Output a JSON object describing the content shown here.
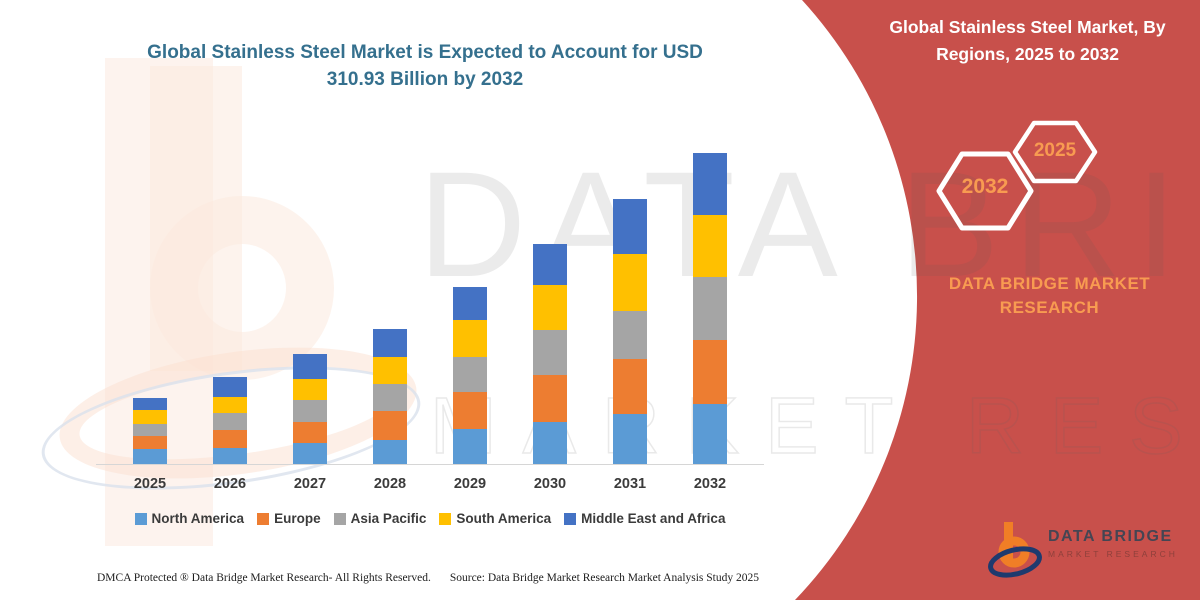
{
  "right_panel": {
    "heading": "Global Stainless Steel Market, By Regions, 2025 to 2032",
    "hexagon_back": "2032",
    "hexagon_front": "2025",
    "brand": "DATA BRIDGE MARKET RESEARCH",
    "panel_color": "#c8504b",
    "accent_text_color": "#f89b51"
  },
  "watermark": {
    "line1": "DATA BRIDGE",
    "line2": "MARKET RESEARCH"
  },
  "logo": {
    "monogram": "b",
    "name": "DATA BRIDGE",
    "tagline": "MARKET RESEARCH"
  },
  "footer": {
    "left": "DMCA Protected ® Data Bridge Market Research-  All Rights Reserved.",
    "right": "Source: Data Bridge Market Research  Market Analysis Study 2025"
  },
  "chart_data": {
    "type": "bar",
    "stacked": true,
    "title": "Global Stainless Steel Market is Expected to Account for USD 310.93 Billion by 2032",
    "unit": "USD Billion",
    "categories": [
      "2025",
      "2026",
      "2027",
      "2028",
      "2029",
      "2030",
      "2031",
      "2032"
    ],
    "series": [
      {
        "name": "North America",
        "color": "#5b9bd5",
        "values": [
          15,
          16,
          21,
          24,
          35,
          42,
          50,
          60
        ]
      },
      {
        "name": "Europe",
        "color": "#ed7d31",
        "values": [
          13,
          18,
          21,
          29,
          37,
          47,
          55,
          64
        ]
      },
      {
        "name": "Asia Pacific",
        "color": "#a5a5a5",
        "values": [
          12,
          17,
          22,
          27,
          35,
          45,
          48,
          63
        ]
      },
      {
        "name": "South America",
        "color": "#ffc000",
        "values": [
          14,
          16,
          21,
          27,
          37,
          45,
          57,
          62
        ]
      },
      {
        "name": "Middle East and Africa",
        "color": "#4472c4",
        "values": [
          12,
          20,
          25,
          28,
          33,
          41,
          55,
          61.93
        ]
      }
    ],
    "totals": [
      66,
      87,
      110,
      135,
      177,
      220,
      265,
      310.93
    ],
    "ylim": [
      0,
      320
    ],
    "y_axis_visible": false,
    "gridlines": false,
    "legend_position": "bottom"
  }
}
